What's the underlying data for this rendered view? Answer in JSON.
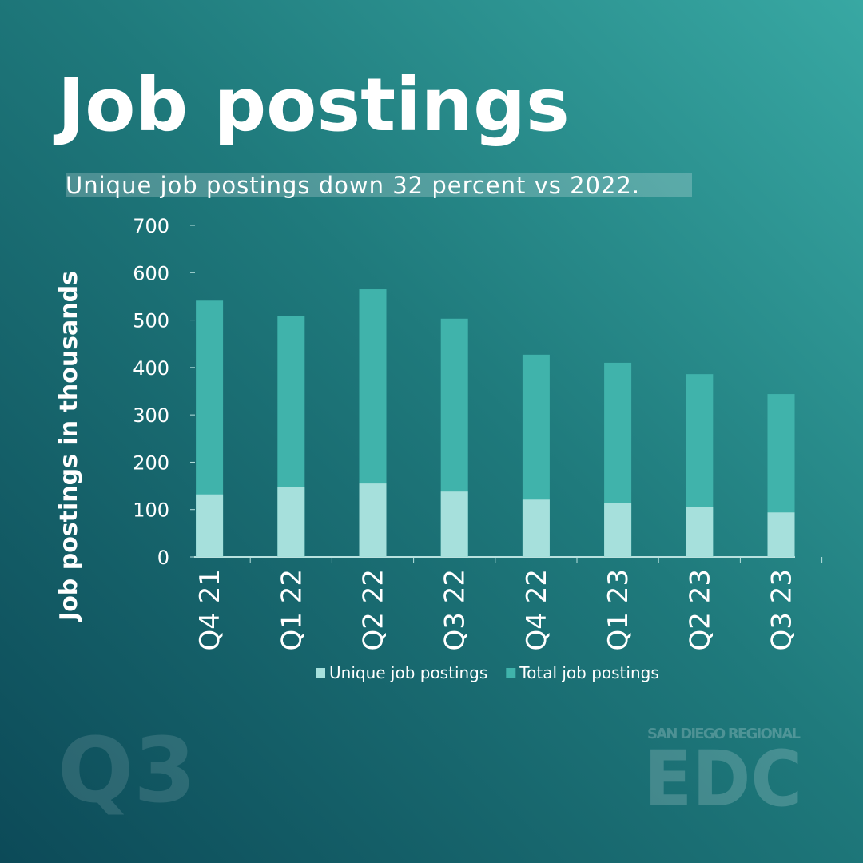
{
  "title": "Job postings",
  "subtitle": "Unique job postings down 32 percent vs 2022.",
  "chart_data": {
    "type": "bar",
    "y_label": "Job postings in thousands",
    "categories": [
      "Q4 21",
      "Q1 22",
      "Q2 22",
      "Q3 22",
      "Q4 22",
      "Q1 23",
      "Q2 23",
      "Q3 23"
    ],
    "series": [
      {
        "name": "Unique job postings",
        "color": "#a6e0dc",
        "values": [
          132,
          148,
          155,
          138,
          121,
          113,
          105,
          94
        ]
      },
      {
        "name": "Total job postings",
        "color": "#40b3ab",
        "values": [
          541,
          509,
          565,
          503,
          427,
          410,
          386,
          344
        ]
      }
    ],
    "ylim": [
      0,
      700
    ],
    "yticks": [
      0,
      100,
      200,
      300,
      400,
      500,
      600,
      700
    ],
    "legend": "bottom"
  },
  "branding": {
    "quarter": "Q3",
    "org_line": "SAN DIEGO REGIONAL",
    "org": "EDC"
  }
}
